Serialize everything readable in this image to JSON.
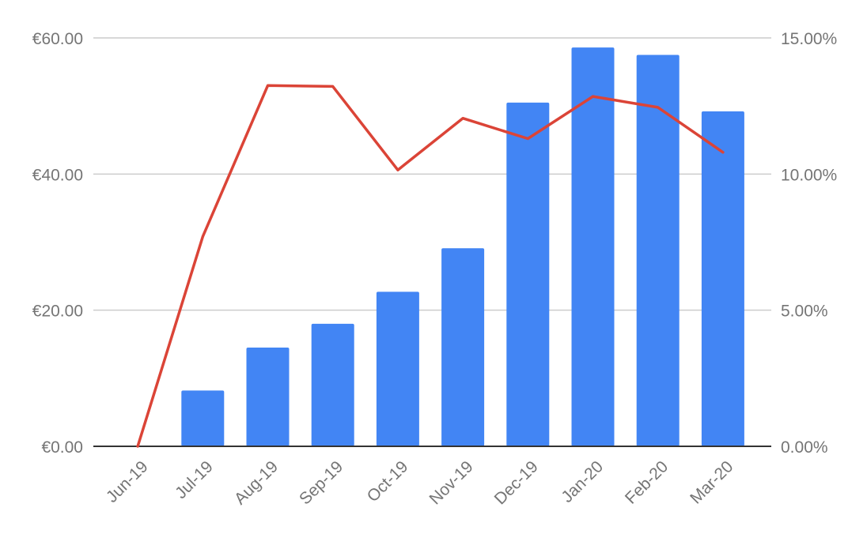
{
  "chart_data": {
    "type": "bar",
    "combo": "bar+line",
    "categories": [
      "Jun-19",
      "Jul-19",
      "Aug-19",
      "Sep-19",
      "Oct-19",
      "Nov-19",
      "Dec-19",
      "Jan-20",
      "Feb-20",
      "Mar-20"
    ],
    "series": [
      {
        "type": "bar",
        "axis": "left",
        "color": "#4285f4",
        "values": [
          0,
          8.2,
          14.5,
          18.0,
          22.7,
          29.1,
          50.5,
          58.6,
          57.5,
          49.2
        ]
      },
      {
        "type": "line",
        "axis": "right",
        "color": "#db4437",
        "values": [
          0,
          7.7,
          13.25,
          13.22,
          10.15,
          12.05,
          11.3,
          12.85,
          12.45,
          10.8
        ]
      }
    ],
    "left_axis": {
      "ylim": [
        0,
        60
      ],
      "ticks": [
        0,
        20,
        40,
        60
      ],
      "tick_labels": [
        "€0.00",
        "€20.00",
        "€40.00",
        "€60.00"
      ]
    },
    "right_axis": {
      "ylim": [
        0,
        15
      ],
      "ticks": [
        0,
        5,
        10,
        15
      ],
      "tick_labels": [
        "0.00%",
        "5.00%",
        "10.00%",
        "15.00%"
      ]
    },
    "title": "",
    "xlabel": "",
    "ylabel": "",
    "grid": true,
    "legend": "none"
  }
}
